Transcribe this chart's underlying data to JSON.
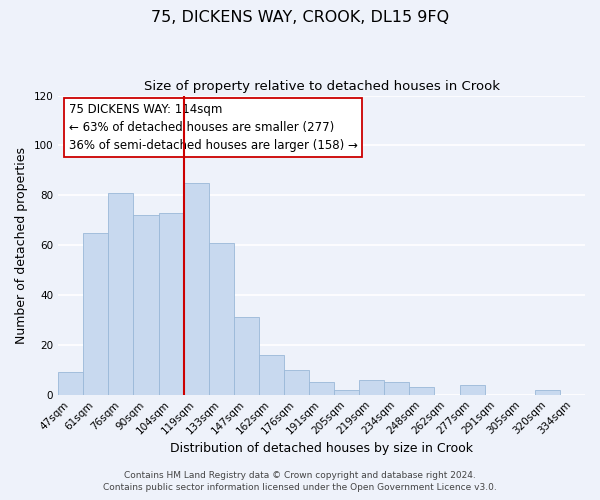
{
  "title": "75, DICKENS WAY, CROOK, DL15 9FQ",
  "subtitle": "Size of property relative to detached houses in Crook",
  "xlabel": "Distribution of detached houses by size in Crook",
  "ylabel": "Number of detached properties",
  "bar_color": "#c8d9ef",
  "bar_edge_color": "#9ab8d8",
  "categories": [
    "47sqm",
    "61sqm",
    "76sqm",
    "90sqm",
    "104sqm",
    "119sqm",
    "133sqm",
    "147sqm",
    "162sqm",
    "176sqm",
    "191sqm",
    "205sqm",
    "219sqm",
    "234sqm",
    "248sqm",
    "262sqm",
    "277sqm",
    "291sqm",
    "305sqm",
    "320sqm",
    "334sqm"
  ],
  "values": [
    9,
    65,
    81,
    72,
    73,
    85,
    61,
    31,
    16,
    10,
    5,
    2,
    6,
    5,
    3,
    0,
    4,
    0,
    0,
    2,
    0
  ],
  "ylim": [
    0,
    120
  ],
  "yticks": [
    0,
    20,
    40,
    60,
    80,
    100,
    120
  ],
  "property_line_x": 4.5,
  "property_line_color": "#cc0000",
  "annotation_text": "75 DICKENS WAY: 114sqm\n← 63% of detached houses are smaller (277)\n36% of semi-detached houses are larger (158) →",
  "footer_line1": "Contains HM Land Registry data © Crown copyright and database right 2024.",
  "footer_line2": "Contains public sector information licensed under the Open Government Licence v3.0.",
  "background_color": "#eef2fa",
  "grid_color": "#ffffff",
  "title_fontsize": 11.5,
  "subtitle_fontsize": 9.5,
  "axis_label_fontsize": 9,
  "tick_fontsize": 7.5,
  "annotation_fontsize": 8.5,
  "footer_fontsize": 6.5
}
